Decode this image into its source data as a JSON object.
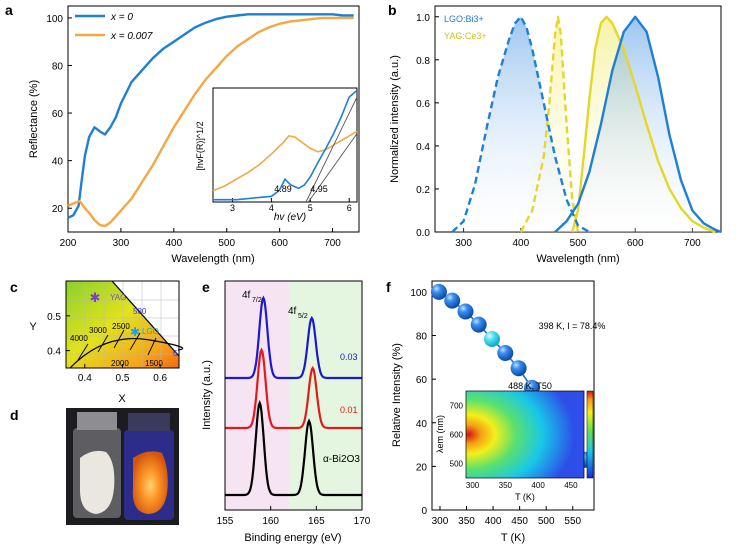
{
  "panels": {
    "a": "a",
    "b": "b",
    "c": "c",
    "d": "d",
    "e": "e",
    "f": "f"
  },
  "colors": {
    "blue": "#1e7fd8",
    "orange": "#f4a742",
    "yellow": "#e3d829",
    "red": "#e31a1c",
    "darkblue": "#1a1ad0",
    "black": "#000000",
    "pink_bg": "#f6e4f3",
    "green_bg": "#e4f6df",
    "sphere": "#1f6fd6",
    "sphere_highlight": "#3fd7f2"
  },
  "chart_data": [
    {
      "panel": "a",
      "type": "line",
      "xlabel": "Wavelength (nm)",
      "ylabel": "Reflectance (%)",
      "xlim": [
        200,
        750
      ],
      "ylim": [
        10,
        105
      ],
      "xticks": [
        "200",
        "300",
        "400",
        "500",
        "600",
        "700"
      ],
      "yticks": [
        "20",
        "40",
        "60",
        "80",
        "100"
      ],
      "legend": "top-left",
      "series": [
        {
          "name": "x = 0",
          "color": "#1e7fd8",
          "x": [
            200,
            210,
            220,
            225,
            232,
            240,
            250,
            262,
            270,
            280,
            290,
            300,
            320,
            340,
            360,
            380,
            400,
            420,
            440,
            460,
            480,
            500,
            520,
            540,
            560,
            580,
            600,
            620,
            640,
            660,
            680,
            700,
            720,
            740
          ],
          "y": [
            16,
            17,
            21,
            30,
            42,
            50,
            54,
            52,
            51,
            54,
            58,
            64,
            73,
            78,
            83,
            87,
            90,
            93,
            96,
            98,
            99.5,
            100.5,
            101,
            101.5,
            101.5,
            101.5,
            101.5,
            101.5,
            101.5,
            101.5,
            101.5,
            101.5,
            101,
            101
          ]
        },
        {
          "name": "x = 0.007",
          "color": "#f4a742",
          "x": [
            200,
            210,
            222,
            232,
            240,
            250,
            260,
            270,
            280,
            300,
            320,
            340,
            360,
            380,
            400,
            420,
            440,
            460,
            480,
            500,
            520,
            540,
            560,
            580,
            600,
            620,
            640,
            660,
            680,
            700,
            720,
            740
          ],
          "y": [
            21,
            22,
            23,
            20,
            18,
            15,
            13,
            12.5,
            14,
            19,
            24,
            31,
            38,
            46,
            54,
            61,
            68,
            74,
            79,
            84,
            88,
            91,
            94,
            96,
            97.5,
            98.5,
            99,
            99.5,
            100,
            100,
            100,
            100
          ]
        }
      ],
      "inset": {
        "xlabel": "hv (eV)",
        "ylabel": "[hvF(R)]^1/2",
        "xlim": [
          2.5,
          6.2
        ],
        "xticks": [
          "3",
          "4",
          "5",
          "6"
        ],
        "annotations": [
          "4.89",
          "4.95"
        ],
        "series": [
          {
            "color": "#f4a742",
            "x": [
              2.5,
              2.8,
              3.1,
              3.4,
              3.7,
              4.0,
              4.3,
              4.45,
              4.6,
              4.8,
              5.0,
              5.2,
              5.4,
              5.6,
              5.8,
              6.0,
              6.2
            ],
            "y": [
              0.1,
              0.14,
              0.2,
              0.26,
              0.33,
              0.42,
              0.52,
              0.58,
              0.57,
              0.52,
              0.47,
              0.44,
              0.46,
              0.5,
              0.54,
              0.58,
              0.62
            ]
          },
          {
            "color": "#1e7fd8",
            "x": [
              2.5,
              2.8,
              3.1,
              3.4,
              3.7,
              4.0,
              4.2,
              4.35,
              4.5,
              4.7,
              4.85,
              5.0,
              5.2,
              5.4,
              5.6,
              5.8,
              6.0,
              6.2
            ],
            "y": [
              0.02,
              0.02,
              0.02,
              0.03,
              0.04,
              0.05,
              0.1,
              0.2,
              0.15,
              0.12,
              0.15,
              0.22,
              0.35,
              0.47,
              0.6,
              0.75,
              0.92,
              0.98
            ]
          }
        ]
      }
    },
    {
      "panel": "b",
      "type": "area",
      "xlabel": "Wavelength (nm)",
      "ylabel": "Normalized intensity (a.u.)",
      "xlim": [
        250,
        750
      ],
      "ylim": [
        0,
        1.05
      ],
      "xticks": [
        "300",
        "400",
        "500",
        "600",
        "700"
      ],
      "yticks": [
        "0.0",
        "0.2",
        "0.4",
        "0.6",
        "0.8",
        "1.0"
      ],
      "legend": "top-left",
      "legend_entries": [
        "LGO:Bi3+",
        "YAG:Ce3+"
      ],
      "series": [
        {
          "name": "LGO:Bi3+ excitation",
          "color": "#1e7fd8",
          "style": "dashed",
          "x": [
            280,
            300,
            320,
            340,
            360,
            380,
            390,
            400,
            410,
            420,
            440,
            460,
            480,
            500,
            520
          ],
          "y": [
            0.0,
            0.05,
            0.22,
            0.48,
            0.72,
            0.9,
            0.97,
            1.0,
            0.95,
            0.85,
            0.6,
            0.35,
            0.15,
            0.03,
            0.0
          ]
        },
        {
          "name": "LGO:Bi3+ emission",
          "color": "#1e7fd8",
          "style": "solid",
          "x": [
            460,
            480,
            500,
            520,
            540,
            560,
            580,
            600,
            620,
            640,
            660,
            680,
            700,
            720,
            740,
            750
          ],
          "y": [
            0.0,
            0.05,
            0.13,
            0.28,
            0.5,
            0.75,
            0.93,
            1.0,
            0.93,
            0.72,
            0.45,
            0.24,
            0.1,
            0.04,
            0.01,
            0.0
          ]
        },
        {
          "name": "YAG:Ce3+ excitation",
          "color": "#e3d829",
          "style": "dashed",
          "x": [
            400,
            420,
            440,
            450,
            460,
            465,
            470,
            480,
            490,
            500
          ],
          "y": [
            0.0,
            0.1,
            0.35,
            0.6,
            0.92,
            1.0,
            0.92,
            0.5,
            0.15,
            0.0
          ]
        },
        {
          "name": "YAG:Ce3+ emission",
          "color": "#e3d829",
          "style": "solid",
          "x": [
            490,
            500,
            510,
            520,
            530,
            540,
            550,
            560,
            580,
            600,
            620,
            640,
            660,
            680,
            700,
            720,
            740
          ],
          "y": [
            0.0,
            0.1,
            0.35,
            0.62,
            0.85,
            0.97,
            1.0,
            0.97,
            0.85,
            0.68,
            0.5,
            0.33,
            0.2,
            0.11,
            0.05,
            0.02,
            0.0
          ]
        }
      ]
    },
    {
      "panel": "c",
      "type": "scatter",
      "xlabel": "X",
      "ylabel": "Y",
      "xlim": [
        0.35,
        0.65
      ],
      "ylim": [
        0.35,
        0.6
      ],
      "xticks": [
        "0.4",
        "0.5",
        "0.6"
      ],
      "yticks": [
        "0.4",
        "0.5"
      ],
      "cct_labels": [
        "4000",
        "3000",
        "2500",
        "2000",
        "1500"
      ],
      "points": [
        {
          "name": "YAG",
          "x": 0.43,
          "y": 0.55
        },
        {
          "name": "LGO",
          "x": 0.54,
          "y": 0.44
        }
      ],
      "labels": [
        "580",
        "6"
      ]
    },
    {
      "panel": "e",
      "type": "line",
      "xlabel": "Binding energy (eV)",
      "ylabel": "Intensity (a.u.)",
      "xlim": [
        155,
        170
      ],
      "xticks": [
        "155",
        "160",
        "165",
        "170"
      ],
      "peak_labels": [
        "4f7/2",
        "4f5/2"
      ],
      "series": [
        {
          "name": "0.03",
          "color": "#1a1ad0",
          "peaks": [
            159.2,
            164.5
          ],
          "offset": 2
        },
        {
          "name": "0.01",
          "color": "#e31a1c",
          "peaks": [
            159.0,
            164.6
          ],
          "offset": 1
        },
        {
          "name": "α-Bi2O3",
          "color": "#000000",
          "peaks": [
            158.8,
            164.2
          ],
          "offset": 0
        }
      ]
    },
    {
      "panel": "f",
      "type": "scatter",
      "xlabel": "T (K)",
      "ylabel": "Relative Intensity (%)",
      "xlim": [
        285,
        590
      ],
      "ylim": [
        0,
        105
      ],
      "xticks": [
        "300",
        "350",
        "400",
        "450",
        "500",
        "550"
      ],
      "yticks": [
        "0",
        "20",
        "40",
        "60",
        "80",
        "100"
      ],
      "x": [
        298,
        323,
        348,
        373,
        398,
        423,
        448,
        473,
        498,
        523,
        548,
        573
      ],
      "y": [
        100,
        96,
        91,
        85,
        78.4,
        72,
        65,
        56,
        47,
        37,
        30,
        23
      ],
      "annotations": [
        "398 K, I = 78.4%",
        "488 K, T50"
      ],
      "inset": {
        "xlabel": "T (K)",
        "ylabel": "λem (nm)",
        "xticks": [
          "300",
          "350",
          "400",
          "450"
        ],
        "yticks": [
          "500",
          "600",
          "700"
        ]
      }
    }
  ]
}
